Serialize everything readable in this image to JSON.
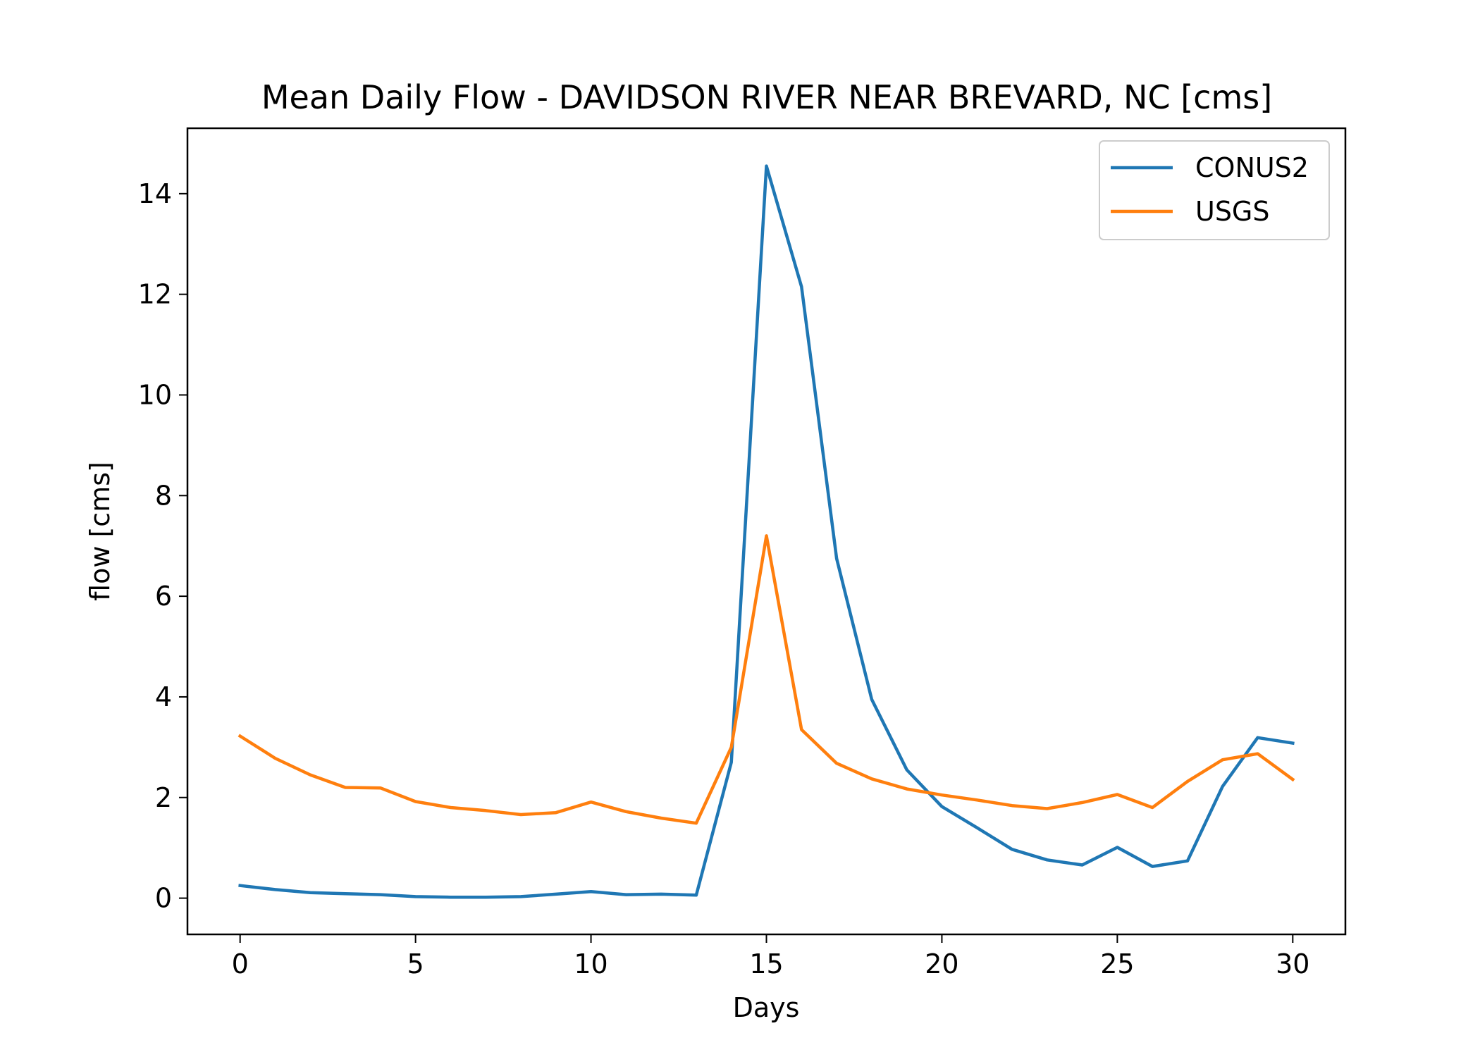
{
  "chart_data": {
    "type": "line",
    "title": "Mean Daily Flow - DAVIDSON RIVER NEAR BREVARD, NC [cms]",
    "xlabel": "Days",
    "ylabel": "flow [cms]",
    "xlim": [
      -1.5,
      31.5
    ],
    "ylim": [
      -0.72,
      15.3
    ],
    "xticks": [
      0,
      5,
      10,
      15,
      20,
      25,
      30
    ],
    "yticks": [
      0,
      2,
      4,
      6,
      8,
      10,
      12,
      14
    ],
    "grid": false,
    "legend_position": "top-right",
    "x": [
      0,
      1,
      2,
      3,
      4,
      5,
      6,
      7,
      8,
      9,
      10,
      11,
      12,
      13,
      14,
      15,
      16,
      17,
      18,
      19,
      20,
      21,
      22,
      23,
      24,
      25,
      26,
      27,
      28,
      29,
      30
    ],
    "series": [
      {
        "name": "CONUS2",
        "color": "#1f77b4",
        "values": [
          0.25,
          0.17,
          0.11,
          0.09,
          0.07,
          0.03,
          0.02,
          0.02,
          0.03,
          0.08,
          0.13,
          0.07,
          0.08,
          0.06,
          2.7,
          14.55,
          12.15,
          6.75,
          3.95,
          2.55,
          1.82,
          1.4,
          0.97,
          0.76,
          0.66,
          1.01,
          0.63,
          0.74,
          2.22,
          3.19,
          3.08
        ]
      },
      {
        "name": "USGS",
        "color": "#ff7f0e",
        "values": [
          3.22,
          2.78,
          2.45,
          2.2,
          2.19,
          1.92,
          1.8,
          1.74,
          1.66,
          1.7,
          1.91,
          1.72,
          1.59,
          1.49,
          3.0,
          7.2,
          3.35,
          2.68,
          2.37,
          2.17,
          2.05,
          1.95,
          1.84,
          1.78,
          1.9,
          2.06,
          1.8,
          2.32,
          2.75,
          2.87,
          2.36
        ]
      }
    ]
  }
}
